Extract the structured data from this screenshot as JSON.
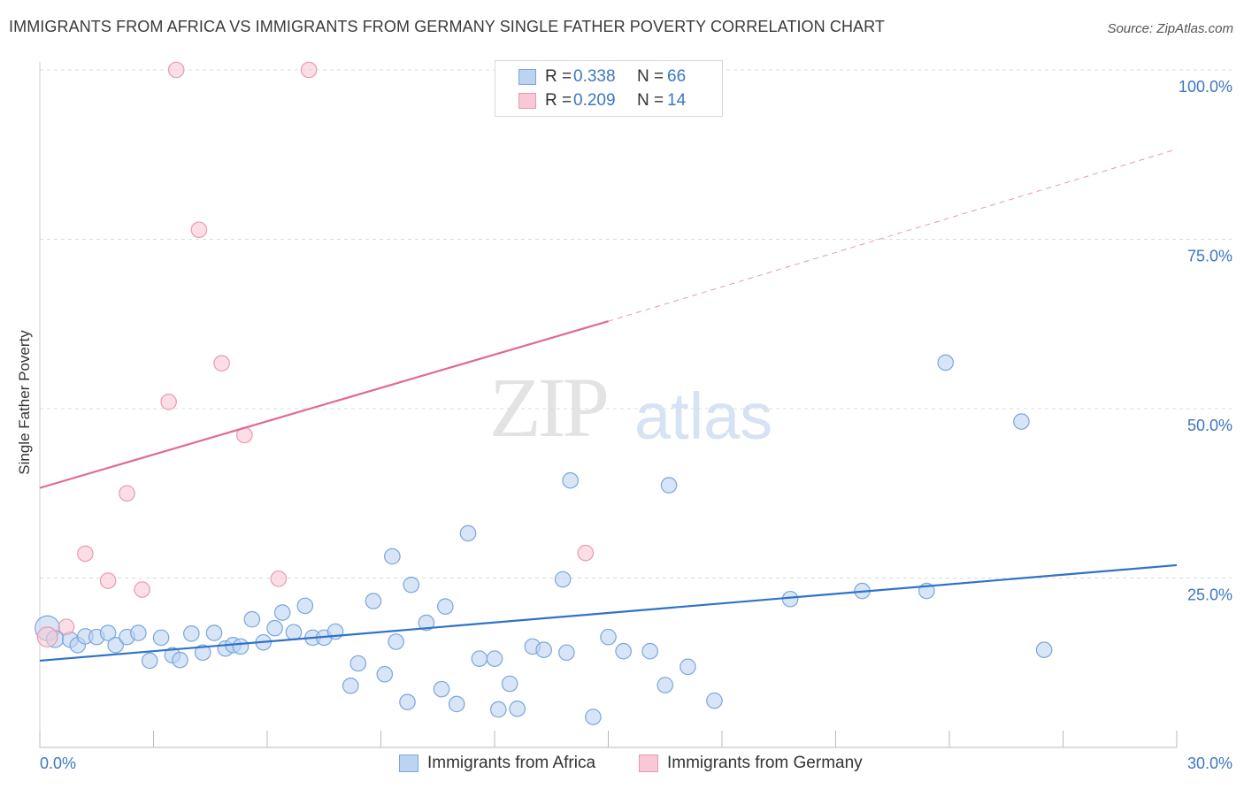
{
  "title": "IMMIGRANTS FROM AFRICA VS IMMIGRANTS FROM GERMANY SINGLE FATHER POVERTY CORRELATION CHART",
  "source": "Source: ZipAtlas.com",
  "watermark": {
    "zip": "ZIP",
    "atlas": "atlas"
  },
  "legend": {
    "rows": [
      {
        "r_label": "R =",
        "r_value": "0.338",
        "n_label": "N =",
        "n_value": "66"
      },
      {
        "r_label": "R =",
        "r_value": "0.209",
        "n_label": "N =",
        "n_value": "14"
      }
    ]
  },
  "colors": {
    "africa_fill": "#bcd4f2",
    "africa_stroke": "#7aa6dc",
    "africa_line": "#2f72c8",
    "germany_fill": "#f8c8d6",
    "germany_stroke": "#e99ab1",
    "germany_line": "#e06b92",
    "axis_text": "#3b76c4",
    "grid": "#dcdcdc"
  },
  "chart_data": {
    "type": "scatter",
    "title": "IMMIGRANTS FROM AFRICA VS IMMIGRANTS FROM GERMANY SINGLE FATHER POVERTY CORRELATION CHART",
    "xlabel": "",
    "ylabel": "Single Father Poverty",
    "xlim": [
      0,
      30
    ],
    "ylim": [
      0,
      100
    ],
    "x_tick_labels": [
      "0.0%",
      "30.0%"
    ],
    "y_tick_labels": [
      {
        "value": 100,
        "label": "100.0%"
      },
      {
        "value": 75,
        "label": "75.0%"
      },
      {
        "value": 50,
        "label": "50.0%"
      },
      {
        "value": 25,
        "label": "25.0%"
      }
    ],
    "series": [
      {
        "name": "Immigrants from Africa",
        "trend": {
          "x": [
            0,
            30
          ],
          "y": [
            12.8,
            26.9
          ]
        },
        "points": [
          [
            0.2,
            17.6,
            16
          ],
          [
            0.4,
            16.0,
            11
          ],
          [
            0.8,
            15.9,
            10
          ],
          [
            1.0,
            15.1,
            10
          ],
          [
            1.2,
            16.4,
            10
          ],
          [
            1.5,
            16.3,
            10
          ],
          [
            1.8,
            16.9,
            10
          ],
          [
            2.0,
            15.1,
            10
          ],
          [
            2.3,
            16.3,
            10
          ],
          [
            2.6,
            16.9,
            10
          ],
          [
            2.9,
            12.8,
            10
          ],
          [
            3.2,
            16.2,
            10
          ],
          [
            3.5,
            13.6,
            10
          ],
          [
            3.7,
            12.9,
            10
          ],
          [
            4.0,
            16.8,
            10
          ],
          [
            4.3,
            14.0,
            10
          ],
          [
            4.6,
            16.9,
            10
          ],
          [
            4.9,
            14.6,
            10
          ],
          [
            5.1,
            15.1,
            10
          ],
          [
            5.3,
            14.9,
            10
          ],
          [
            5.6,
            18.9,
            10
          ],
          [
            5.9,
            15.5,
            10
          ],
          [
            6.2,
            17.6,
            10
          ],
          [
            6.4,
            19.9,
            10
          ],
          [
            6.7,
            17.0,
            10
          ],
          [
            7.0,
            20.9,
            10
          ],
          [
            7.2,
            16.2,
            10
          ],
          [
            7.5,
            16.2,
            10
          ],
          [
            7.8,
            17.1,
            10
          ],
          [
            8.2,
            9.1,
            10
          ],
          [
            8.4,
            12.4,
            10
          ],
          [
            8.8,
            21.6,
            10
          ],
          [
            9.1,
            10.8,
            10
          ],
          [
            9.3,
            28.2,
            10
          ],
          [
            9.4,
            15.6,
            10
          ],
          [
            9.7,
            6.7,
            10
          ],
          [
            9.8,
            24.0,
            10
          ],
          [
            10.2,
            18.4,
            10
          ],
          [
            10.6,
            8.6,
            10
          ],
          [
            10.7,
            20.8,
            10
          ],
          [
            11.0,
            6.4,
            10
          ],
          [
            11.3,
            31.6,
            10
          ],
          [
            11.6,
            13.1,
            10
          ],
          [
            12.0,
            13.1,
            10
          ],
          [
            12.1,
            5.6,
            10
          ],
          [
            12.4,
            9.4,
            10
          ],
          [
            12.6,
            5.7,
            10
          ],
          [
            13.0,
            14.9,
            10
          ],
          [
            13.3,
            14.4,
            10
          ],
          [
            13.8,
            24.8,
            10
          ],
          [
            13.9,
            14.0,
            10
          ],
          [
            14.0,
            39.4,
            10
          ],
          [
            14.6,
            4.5,
            10
          ],
          [
            15.0,
            16.3,
            10
          ],
          [
            15.4,
            14.2,
            10
          ],
          [
            16.1,
            14.2,
            10
          ],
          [
            16.5,
            9.2,
            10
          ],
          [
            16.6,
            38.7,
            10
          ],
          [
            17.1,
            11.9,
            10
          ],
          [
            17.8,
            6.9,
            10
          ],
          [
            19.8,
            21.9,
            10
          ],
          [
            21.7,
            23.1,
            10
          ],
          [
            23.4,
            23.1,
            10
          ],
          [
            23.9,
            56.8,
            10
          ],
          [
            25.9,
            48.1,
            10
          ],
          [
            26.5,
            14.4,
            10
          ]
        ]
      },
      {
        "name": "Immigrants from Germany",
        "trend": {
          "x": [
            0,
            15
          ],
          "y": [
            38.3,
            62.9
          ]
        },
        "trend_extended": {
          "x": [
            15,
            30
          ],
          "y": [
            62.9,
            88.3
          ]
        },
        "points": [
          [
            0.2,
            16.3,
            13
          ],
          [
            0.7,
            17.8,
            10
          ],
          [
            1.2,
            28.6,
            10
          ],
          [
            1.8,
            24.6,
            10
          ],
          [
            2.3,
            37.5,
            10
          ],
          [
            2.7,
            23.3,
            10
          ],
          [
            3.4,
            51.0,
            10
          ],
          [
            3.6,
            100.0,
            10
          ],
          [
            4.2,
            76.4,
            10
          ],
          [
            4.8,
            56.7,
            10
          ],
          [
            5.4,
            46.1,
            10
          ],
          [
            6.3,
            24.9,
            10
          ],
          [
            7.1,
            100.0,
            10
          ],
          [
            14.4,
            28.7,
            10
          ]
        ]
      }
    ]
  },
  "bottom_legend": [
    "Immigrants from Africa",
    "Immigrants from Germany"
  ]
}
